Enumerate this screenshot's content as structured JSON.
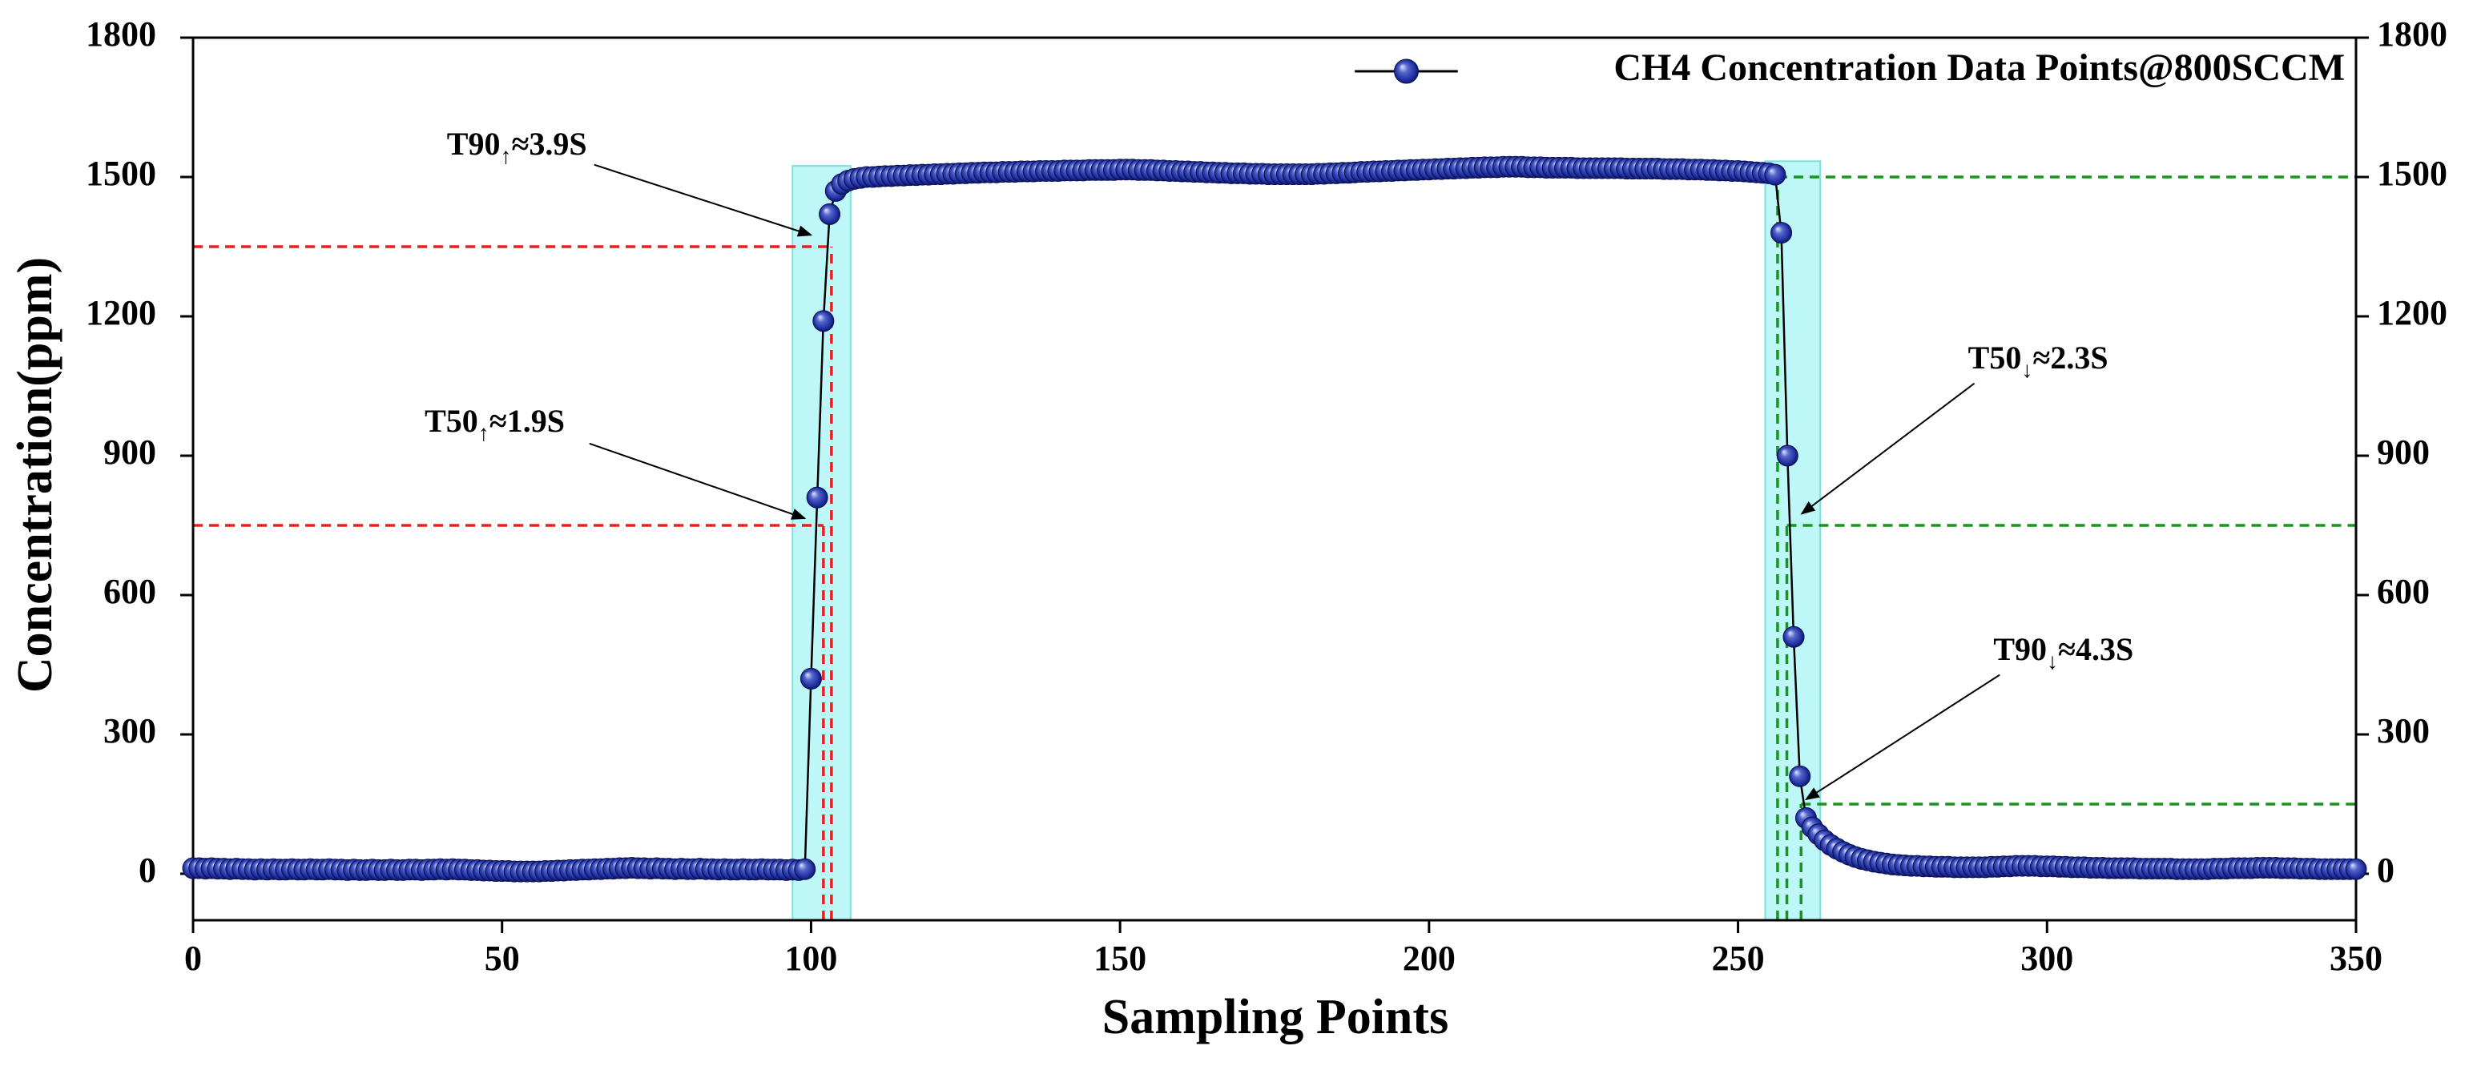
{
  "chart_data": {
    "type": "line",
    "xlabel": "Sampling Points",
    "ylabel": "Concentration(ppm)",
    "xlim": [
      0,
      350
    ],
    "xticks": [
      0,
      50,
      100,
      150,
      200,
      250,
      300,
      350
    ],
    "ylim": [
      -100,
      1800
    ],
    "yticks": [
      0,
      300,
      600,
      900,
      1200,
      1500,
      1800
    ],
    "y2lim": [
      -100,
      1800
    ],
    "y2ticks": [
      0,
      300,
      600,
      900,
      1200,
      1500,
      1800
    ],
    "legend": "upper right",
    "x": [
      0,
      1,
      2,
      3,
      4,
      5,
      6,
      7,
      8,
      9,
      10,
      11,
      12,
      13,
      14,
      15,
      16,
      17,
      18,
      19,
      20,
      21,
      22,
      23,
      24,
      25,
      26,
      27,
      28,
      29,
      30,
      31,
      32,
      33,
      34,
      35,
      36,
      37,
      38,
      39,
      40,
      41,
      42,
      43,
      44,
      45,
      46,
      47,
      48,
      49,
      50,
      51,
      52,
      53,
      54,
      55,
      56,
      57,
      58,
      59,
      60,
      61,
      62,
      63,
      64,
      65,
      66,
      67,
      68,
      69,
      70,
      71,
      72,
      73,
      74,
      75,
      76,
      77,
      78,
      79,
      80,
      81,
      82,
      83,
      84,
      85,
      86,
      87,
      88,
      89,
      90,
      91,
      92,
      93,
      94,
      95,
      96,
      97,
      98,
      99,
      100,
      101,
      102,
      103,
      104,
      105,
      106,
      107,
      108,
      109,
      110,
      111,
      112,
      113,
      114,
      115,
      116,
      117,
      118,
      119,
      120,
      121,
      122,
      123,
      124,
      125,
      126,
      127,
      128,
      129,
      130,
      131,
      132,
      133,
      134,
      135,
      136,
      137,
      138,
      139,
      140,
      141,
      142,
      143,
      144,
      145,
      146,
      147,
      148,
      149,
      150,
      151,
      152,
      153,
      154,
      155,
      156,
      157,
      158,
      159,
      160,
      161,
      162,
      163,
      164,
      165,
      166,
      167,
      168,
      169,
      170,
      171,
      172,
      173,
      174,
      175,
      176,
      177,
      178,
      179,
      180,
      181,
      182,
      183,
      184,
      185,
      186,
      187,
      188,
      189,
      190,
      191,
      192,
      193,
      194,
      195,
      196,
      197,
      198,
      199,
      200,
      201,
      202,
      203,
      204,
      205,
      206,
      207,
      208,
      209,
      210,
      211,
      212,
      213,
      214,
      215,
      216,
      217,
      218,
      219,
      220,
      221,
      222,
      223,
      224,
      225,
      226,
      227,
      228,
      229,
      230,
      231,
      232,
      233,
      234,
      235,
      236,
      237,
      238,
      239,
      240,
      241,
      242,
      243,
      244,
      245,
      246,
      247,
      248,
      249,
      250,
      251,
      252,
      253,
      254,
      255,
      256,
      257,
      258,
      259,
      260,
      261,
      262,
      263,
      264,
      265,
      266,
      267,
      268,
      269,
      270,
      271,
      272,
      273,
      274,
      275,
      276,
      277,
      278,
      279,
      280,
      281,
      282,
      283,
      284,
      285,
      286,
      287,
      288,
      289,
      290,
      291,
      292,
      293,
      294,
      295,
      296,
      297,
      298,
      299,
      300,
      301,
      302,
      303,
      304,
      305,
      306,
      307,
      308,
      309,
      310,
      311,
      312,
      313,
      314,
      315,
      316,
      317,
      318,
      319,
      320,
      321,
      322,
      323,
      324,
      325,
      326,
      327,
      328,
      329,
      330,
      331,
      332,
      333,
      334,
      335,
      336,
      337,
      338,
      339,
      340,
      341,
      342,
      343,
      344,
      345,
      346,
      347,
      348,
      349,
      350
    ],
    "series": [
      {
        "name": "CH4 Concentration Data Points@800SCCM",
        "color": "#1a2a9a",
        "values": [
          12,
          12,
          11,
          12,
          11,
          11,
          10,
          11,
          10,
          10,
          9,
          10,
          9,
          10,
          9,
          9,
          10,
          9,
          9,
          10,
          9,
          9,
          10,
          9,
          9,
          8,
          9,
          8,
          8,
          9,
          8,
          8,
          9,
          8,
          8,
          9,
          9,
          8,
          9,
          9,
          10,
          9,
          10,
          9,
          9,
          8,
          8,
          7,
          7,
          6,
          6,
          6,
          5,
          5,
          5,
          5,
          5,
          6,
          6,
          7,
          7,
          8,
          8,
          9,
          9,
          10,
          10,
          11,
          11,
          12,
          12,
          13,
          12,
          12,
          11,
          12,
          11,
          11,
          10,
          11,
          10,
          10,
          11,
          10,
          10,
          9,
          10,
          9,
          9,
          10,
          9,
          9,
          10,
          9,
          9,
          9,
          8,
          9,
          8,
          10,
          420,
          810,
          1190,
          1420,
          1470,
          1485,
          1492,
          1496,
          1498,
          1500,
          1500,
          1501,
          1502,
          1502,
          1503,
          1503,
          1504,
          1504,
          1505,
          1505,
          1506,
          1506,
          1507,
          1507,
          1508,
          1508,
          1509,
          1509,
          1510,
          1510,
          1510,
          1511,
          1511,
          1511,
          1512,
          1512,
          1512,
          1513,
          1513,
          1513,
          1513,
          1514,
          1514,
          1514,
          1514,
          1515,
          1515,
          1515,
          1515,
          1515,
          1516,
          1516,
          1516,
          1515,
          1515,
          1515,
          1514,
          1514,
          1513,
          1513,
          1512,
          1512,
          1511,
          1511,
          1510,
          1510,
          1509,
          1509,
          1508,
          1508,
          1508,
          1507,
          1507,
          1507,
          1506,
          1506,
          1506,
          1506,
          1506,
          1506,
          1506,
          1506,
          1507,
          1507,
          1508,
          1508,
          1509,
          1509,
          1510,
          1511,
          1511,
          1512,
          1512,
          1513,
          1513,
          1514,
          1514,
          1515,
          1515,
          1516,
          1516,
          1517,
          1517,
          1518,
          1518,
          1519,
          1519,
          1520,
          1520,
          1521,
          1521,
          1521,
          1522,
          1522,
          1522,
          1522,
          1521,
          1521,
          1521,
          1520,
          1520,
          1520,
          1520,
          1520,
          1519,
          1519,
          1519,
          1519,
          1519,
          1519,
          1519,
          1519,
          1518,
          1518,
          1518,
          1518,
          1518,
          1518,
          1517,
          1517,
          1517,
          1517,
          1516,
          1516,
          1516,
          1515,
          1515,
          1514,
          1514,
          1513,
          1513,
          1512,
          1511,
          1510,
          1509,
          1508,
          1505,
          1380,
          900,
          510,
          210,
          120,
          100,
          85,
          72,
          62,
          54,
          47,
          41,
          36,
          32,
          29,
          26,
          24,
          22,
          20,
          19,
          18,
          17,
          17,
          16,
          16,
          15,
          15,
          15,
          14,
          14,
          14,
          14,
          14,
          14,
          15,
          15,
          16,
          16,
          17,
          17,
          17,
          17,
          16,
          16,
          16,
          15,
          15,
          14,
          14,
          14,
          13,
          13,
          13,
          12,
          12,
          12,
          12,
          12,
          11,
          11,
          11,
          11,
          11,
          11,
          10,
          10,
          10,
          10,
          10,
          10,
          11,
          11,
          11,
          12,
          12,
          12,
          12,
          13,
          13,
          13,
          13,
          12,
          12,
          12,
          11,
          11,
          11,
          10,
          10,
          10,
          10,
          10,
          10,
          10
        ]
      }
    ],
    "shaded_regions": {
      "color": "#a8f4f4",
      "regions": [
        [
          97,
          106.4,
          -100,
          1524
        ],
        [
          254.4,
          263.3,
          -100,
          1534
        ]
      ]
    },
    "reference_lines": [
      {
        "color": "#e8201e",
        "segments": [
          [
            0,
            103.3,
            1350,
            1350
          ],
          [
            0,
            102,
            750,
            750
          ],
          [
            102,
            102,
            -100,
            750
          ],
          [
            103.3,
            103.3,
            -100,
            1350
          ],
          [
            0,
            99,
            10,
            10
          ]
        ]
      },
      {
        "color": "#18961c",
        "segments": [
          [
            256.4,
            350,
            1500,
            1500
          ],
          [
            257.9,
            350,
            750,
            750
          ],
          [
            260.2,
            350,
            150,
            150
          ],
          [
            256.4,
            256.4,
            -100,
            1500
          ],
          [
            257.9,
            257.9,
            -100,
            750
          ],
          [
            260.2,
            260.2,
            -100,
            150
          ]
        ]
      }
    ],
    "annotations": [
      {
        "main": "T90",
        "sub": "↑",
        "rest": "≈3.9S",
        "xy": [
          100,
          1375
        ]
      },
      {
        "main": "T50",
        "sub": "↑",
        "rest": "≈1.9S",
        "xy": [
          99,
          765
        ]
      },
      {
        "main": "T50",
        "sub": "↓",
        "rest": "≈2.3S",
        "xy": [
          260.3,
          775
        ]
      },
      {
        "main": "T90",
        "sub": "↓",
        "rest": "≈4.3S",
        "xy": [
          261,
          160
        ]
      }
    ]
  }
}
